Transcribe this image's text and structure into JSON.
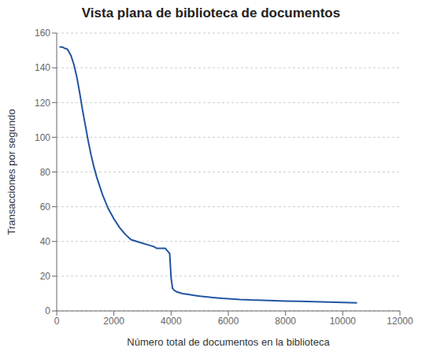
{
  "chart_data": {
    "type": "line",
    "title": "Vista plana de biblioteca de documentos",
    "xlabel": "Número total de documentos en la biblioteca",
    "ylabel": "Transacciones por segundo",
    "xlim": [
      0,
      12000
    ],
    "ylim": [
      0,
      160
    ],
    "xticks": [
      0,
      2000,
      4000,
      6000,
      8000,
      10000,
      12000
    ],
    "yticks": [
      0,
      20,
      40,
      60,
      80,
      100,
      120,
      140,
      160
    ],
    "grid": true,
    "color": "#2255A0",
    "x": [
      100,
      200,
      300,
      350,
      400,
      500,
      600,
      700,
      800,
      900,
      1000,
      1100,
      1200,
      1300,
      1400,
      1500,
      1600,
      1800,
      2000,
      2200,
      2400,
      2600,
      2800,
      3000,
      3200,
      3400,
      3500,
      3600,
      3700,
      3800,
      3850,
      3900,
      3950,
      4000,
      4050,
      4100,
      4200,
      4400,
      4600,
      4800,
      5000,
      5200,
      5400,
      5600,
      5800,
      6000,
      6200,
      6400,
      6600,
      6800,
      7000,
      7200,
      7400,
      7600,
      7800,
      8000,
      8500,
      9000,
      9500,
      10000,
      10500
    ],
    "values": [
      152,
      152,
      151,
      151,
      150,
      147,
      142,
      135,
      126,
      116,
      107,
      98,
      90,
      83,
      77,
      72,
      67,
      59,
      53,
      48,
      44,
      41,
      40,
      39,
      38,
      37,
      36,
      36,
      36,
      36,
      35,
      34,
      33,
      19,
      13,
      12,
      11,
      10,
      9.5,
      9,
      8.5,
      8.2,
      7.8,
      7.5,
      7.2,
      7.0,
      6.8,
      6.6,
      6.5,
      6.3,
      6.2,
      6.1,
      6.0,
      5.9,
      5.8,
      5.7,
      5.5,
      5.3,
      5.1,
      4.9,
      4.7
    ]
  }
}
